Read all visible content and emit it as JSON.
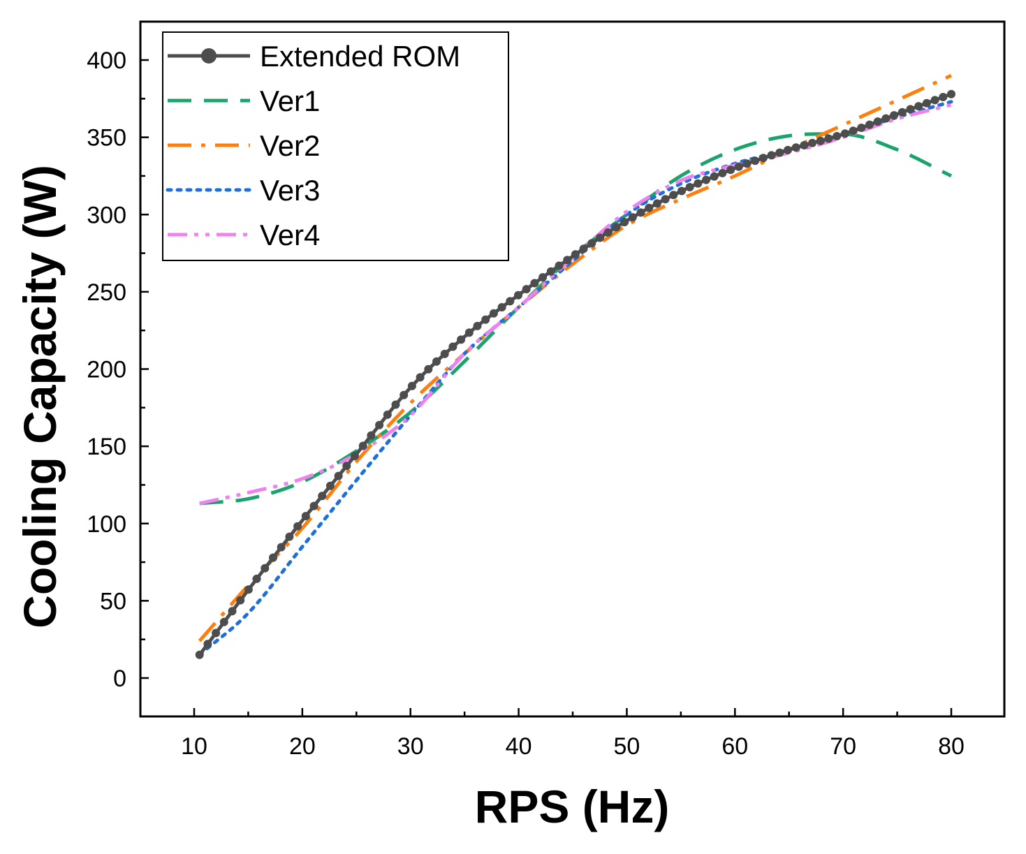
{
  "chart_data": {
    "type": "line",
    "title": "",
    "xlabel": "RPS (Hz)",
    "ylabel": "Cooling Capacity (W)",
    "xlim": [
      5,
      85
    ],
    "ylim": [
      -25,
      425
    ],
    "xticks": [
      10,
      20,
      30,
      40,
      50,
      60,
      70,
      80
    ],
    "yticks": [
      0,
      50,
      100,
      150,
      200,
      250,
      300,
      350,
      400
    ],
    "grid": false,
    "legend_position": "top-left",
    "series": [
      {
        "name": "Extended ROM",
        "color": "#4d4d4d",
        "style": "solid-markers",
        "x": [
          10.5,
          15,
          20,
          25,
          30,
          35,
          40,
          45,
          50,
          55,
          60,
          65,
          70,
          75,
          80
        ],
        "y": [
          15,
          57,
          102,
          145,
          188,
          221,
          248,
          273,
          296,
          315,
          330,
          342,
          352,
          365,
          378
        ]
      },
      {
        "name": "Ver1",
        "color": "#1aa36b",
        "style": "dash",
        "x": [
          10.5,
          15,
          20,
          25,
          30,
          35,
          40,
          45,
          50,
          55,
          60,
          65,
          70,
          75,
          80
        ],
        "y": [
          113,
          116,
          127,
          147,
          172,
          205,
          240,
          273,
          300,
          325,
          342,
          351,
          352,
          342,
          325
        ]
      },
      {
        "name": "Ver2",
        "color": "#ff7f0e",
        "style": "dashdot",
        "x": [
          10.5,
          15,
          20,
          25,
          30,
          35,
          40,
          45,
          50,
          55,
          60,
          65,
          70,
          75,
          80
        ],
        "y": [
          24,
          60,
          97,
          140,
          178,
          210,
          240,
          268,
          293,
          310,
          325,
          342,
          358,
          374,
          390
        ]
      },
      {
        "name": "Ver3",
        "color": "#1f6fd6",
        "style": "dot",
        "x": [
          10.5,
          15,
          20,
          25,
          30,
          35,
          40,
          45,
          50,
          55,
          60,
          65,
          70,
          75,
          80
        ],
        "y": [
          15,
          42,
          85,
          128,
          170,
          210,
          240,
          270,
          300,
          320,
          333,
          342,
          352,
          363,
          373
        ]
      },
      {
        "name": "Ver4",
        "color": "#ee82ee",
        "style": "dashdotdot",
        "x": [
          10.5,
          15,
          20,
          25,
          30,
          35,
          40,
          45,
          50,
          55,
          60,
          65,
          70,
          75,
          80
        ],
        "y": [
          113,
          120,
          129,
          145,
          170,
          210,
          240,
          272,
          302,
          322,
          332,
          340,
          350,
          362,
          371
        ]
      }
    ]
  }
}
